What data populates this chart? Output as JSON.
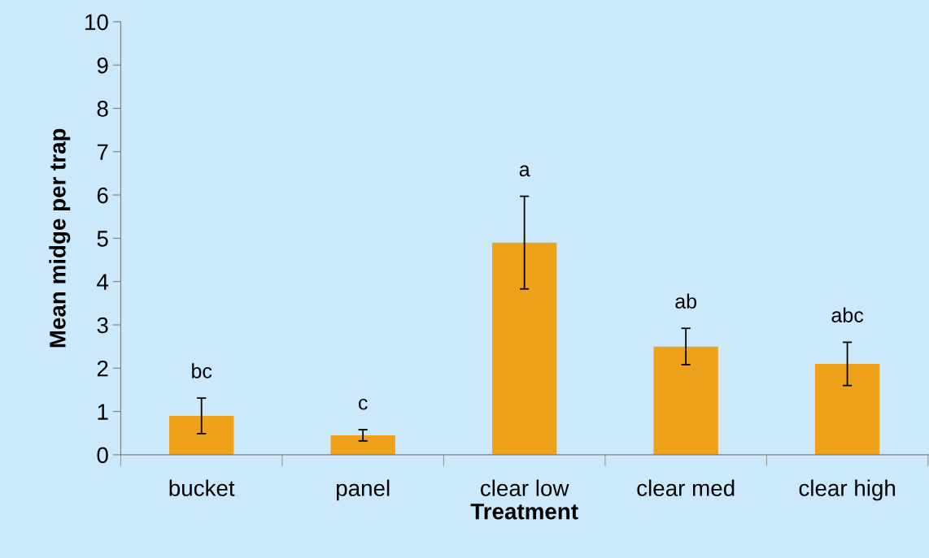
{
  "chart_data": {
    "type": "bar",
    "xlabel": "Treatment",
    "ylabel": "Mean midge per trap",
    "categories": [
      "bucket",
      "panel",
      "clear low",
      "clear med",
      "clear high"
    ],
    "values": [
      0.9,
      0.45,
      4.9,
      2.5,
      2.1
    ],
    "errors": [
      0.41,
      0.13,
      1.07,
      0.42,
      0.5
    ],
    "color": "#eea21b",
    "ylim": [
      0,
      10
    ],
    "yticks": [
      0,
      1,
      2,
      3,
      4,
      5,
      6,
      7,
      8,
      9,
      10
    ],
    "grid": false,
    "legend": false,
    "annotations": [
      {
        "text": "bc",
        "x": "bucket",
        "y": 1.31
      },
      {
        "text": "c",
        "x": "panel",
        "y": 0.58
      },
      {
        "text": "a",
        "x": "clear low",
        "y": 5.97
      },
      {
        "text": "ab",
        "x": "clear med",
        "y": 2.92
      },
      {
        "text": "abc",
        "x": "clear high",
        "y": 2.6
      }
    ]
  }
}
